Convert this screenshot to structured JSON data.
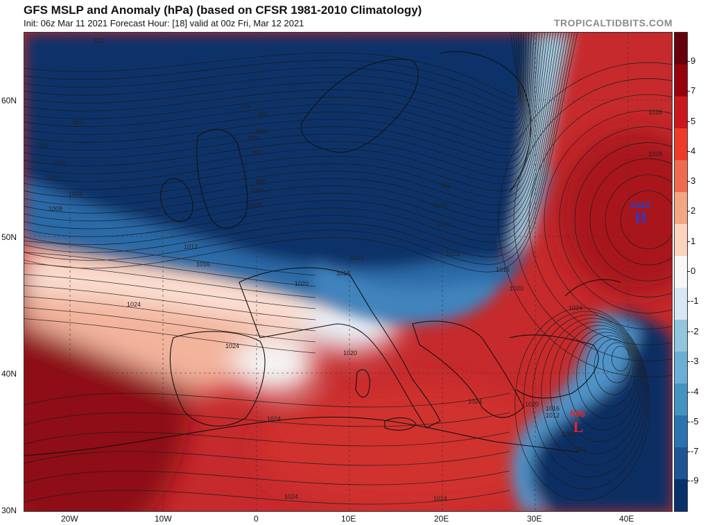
{
  "header": {
    "title": "GFS MSLP and Anomaly (hPa) (based on CFSR 1981-2010 Climatology)",
    "subtitle": "Init: 06z Mar 11 2021   Forecast Hour: [18]   valid at 00z Fri, Mar 12 2021",
    "brand": "TROPICALTIDBITS.COM"
  },
  "axes": {
    "lat_labels": [
      "60N",
      "50N",
      "40N",
      "30N"
    ],
    "lon_labels": [
      "20W",
      "10W",
      "0",
      "10E",
      "20E",
      "30E",
      "40E"
    ]
  },
  "colorbar": {
    "labels": [
      "9",
      "7",
      "5",
      "4",
      "3",
      "2",
      "1",
      "0",
      "-1",
      "-2",
      "-3",
      "-4",
      "-5",
      "-7",
      "-9"
    ],
    "colors": [
      "#67000d",
      "#99000d",
      "#cb181d",
      "#ef3b2c",
      "#f06a4e",
      "#f4a582",
      "#fcd3bd",
      "#f7f7f7",
      "#d6e8f4",
      "#92c5de",
      "#6baed6",
      "#4393c3",
      "#2b72b0",
      "#1f5596",
      "#08306b"
    ]
  },
  "systems": {
    "high_value": "1032",
    "high_letter": "H",
    "low_value": "995",
    "low_letter": "L"
  },
  "contour_labels": [
    "972",
    "976",
    "980",
    "984",
    "984",
    "988",
    "992",
    "992",
    "996",
    "996",
    "996",
    "1000",
    "1000",
    "1004",
    "1004",
    "1004",
    "1008",
    "1008",
    "1012",
    "1012",
    "1012",
    "1016",
    "1016",
    "1016",
    "1020",
    "1020",
    "1020",
    "1020",
    "1024",
    "1024",
    "1024",
    "1024",
    "1024",
    "1024",
    "1024",
    "1028",
    "1028",
    "1016",
    "1012",
    "1008",
    "1004"
  ],
  "colors": {
    "high_label": "#1f3fd0",
    "low_label": "#e8202a",
    "deep_blue": "#0b2e63",
    "deep_red": "#b81d24"
  }
}
